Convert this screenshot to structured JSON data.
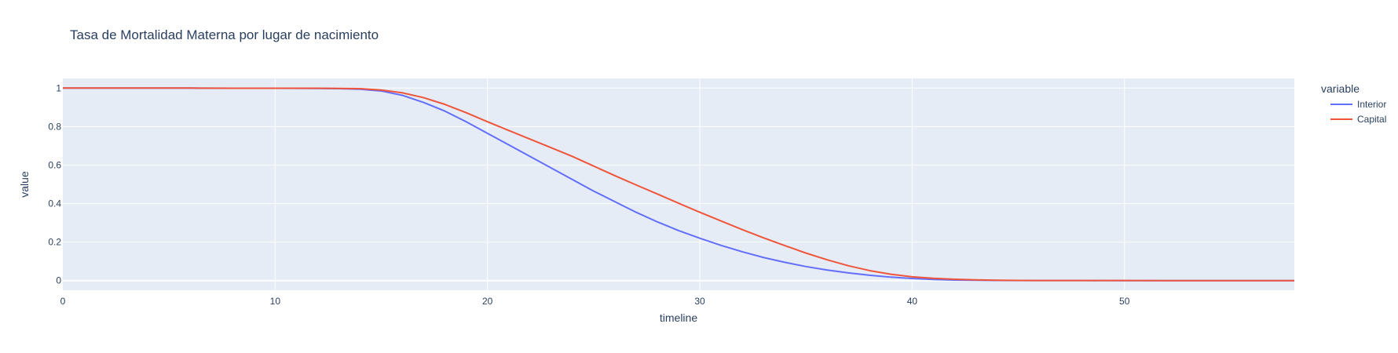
{
  "chart_data": {
    "type": "line",
    "title": "Tasa de Mortalidad Materna por lugar de nacimiento",
    "xlabel": "timeline",
    "ylabel": "value",
    "xlim": [
      0,
      58
    ],
    "ylim": [
      -0.05,
      1.05
    ],
    "x_ticks": [
      0,
      10,
      20,
      30,
      40,
      50
    ],
    "y_ticks": [
      0,
      0.2,
      0.4,
      0.6,
      0.8,
      1
    ],
    "y_tick_labels": [
      "0",
      "0.2",
      "0.4",
      "0.6",
      "0.8",
      "1"
    ],
    "grid": true,
    "legend_title": "variable",
    "legend_position": "right",
    "series": [
      {
        "name": "Interior",
        "color": "#636efa",
        "x": [
          0,
          2,
          4,
          6,
          8,
          10,
          12,
          13,
          14,
          15,
          16,
          17,
          18,
          19,
          20,
          21,
          22,
          23,
          24,
          25,
          26,
          27,
          28,
          29,
          30,
          31,
          32,
          33,
          34,
          35,
          36,
          37,
          38,
          39,
          40,
          41,
          42,
          43,
          44,
          45,
          46,
          48,
          50,
          52,
          54,
          56,
          58
        ],
        "y": [
          1,
          1,
          1,
          1,
          0.999,
          0.999,
          0.998,
          0.997,
          0.994,
          0.985,
          0.962,
          0.925,
          0.88,
          0.825,
          0.765,
          0.705,
          0.645,
          0.585,
          0.525,
          0.465,
          0.41,
          0.355,
          0.305,
          0.26,
          0.22,
          0.183,
          0.15,
          0.12,
          0.095,
          0.073,
          0.055,
          0.04,
          0.028,
          0.018,
          0.011,
          0.006,
          0.003,
          0.002,
          0.001,
          0.0005,
          0.0003,
          0.0002,
          0.0001,
          0,
          0,
          0,
          0
        ]
      },
      {
        "name": "Capital",
        "color": "#ef553b",
        "x": [
          0,
          2,
          4,
          6,
          8,
          10,
          12,
          13,
          14,
          15,
          16,
          17,
          18,
          19,
          20,
          21,
          22,
          23,
          24,
          25,
          26,
          27,
          28,
          29,
          30,
          31,
          32,
          33,
          34,
          35,
          36,
          37,
          38,
          39,
          40,
          41,
          42,
          43,
          44,
          45,
          46,
          48,
          50,
          52,
          54,
          56,
          58
        ],
        "y": [
          1,
          1,
          1,
          1,
          0.999,
          0.999,
          0.999,
          0.998,
          0.997,
          0.99,
          0.975,
          0.95,
          0.915,
          0.872,
          0.825,
          0.78,
          0.735,
          0.69,
          0.645,
          0.595,
          0.545,
          0.497,
          0.45,
          0.402,
          0.355,
          0.31,
          0.265,
          0.222,
          0.182,
          0.143,
          0.108,
          0.077,
          0.052,
          0.033,
          0.02,
          0.012,
          0.007,
          0.004,
          0.002,
          0.001,
          0.0005,
          0.0003,
          0.0002,
          0.0001,
          0,
          0,
          0
        ]
      }
    ]
  }
}
